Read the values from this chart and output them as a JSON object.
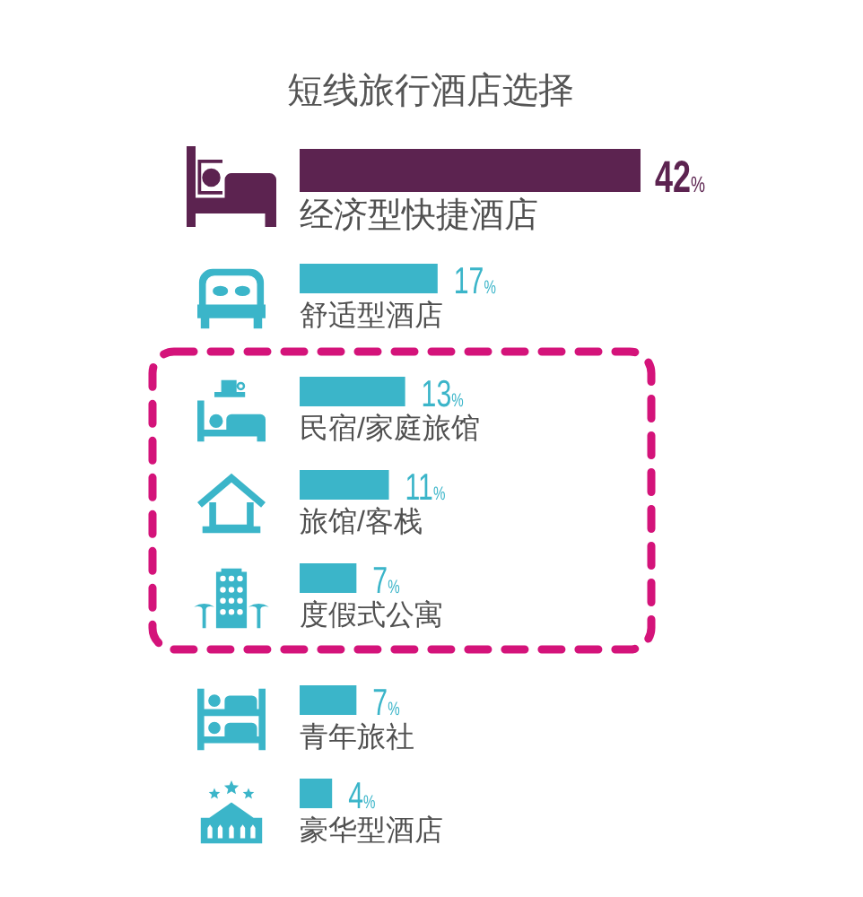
{
  "chart_data": {
    "type": "bar",
    "orientation": "horizontal",
    "title": "短线旅行酒店选择",
    "categories": [
      "经济型快捷酒店",
      "舒适型酒店",
      "民宿/家庭旅馆",
      "旅馆/客栈",
      "度假式公寓",
      "青年旅社",
      "豪华型酒店"
    ],
    "values": [
      42,
      17,
      13,
      11,
      7,
      7,
      4
    ],
    "colors": [
      "#5c2350",
      "#3bb5c9",
      "#3bb5c9",
      "#3bb5c9",
      "#3bb5c9",
      "#3bb5c9",
      "#3bb5c9"
    ],
    "value_labels": [
      "42%",
      "17%",
      "13%",
      "11%",
      "7%",
      "7%",
      "4%"
    ]
  }
}
